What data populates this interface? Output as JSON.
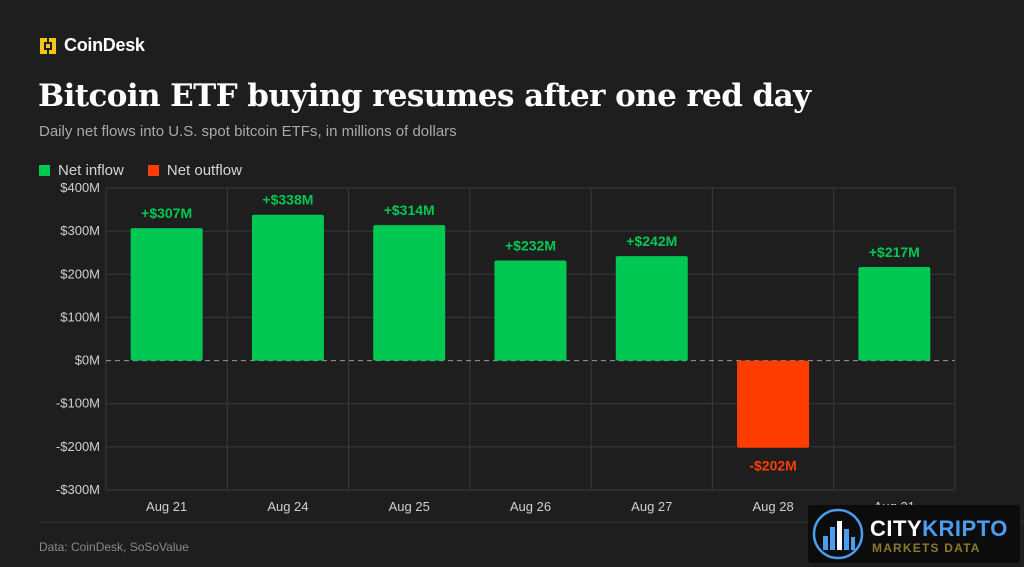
{
  "brand": {
    "name": "CoinDesk",
    "logo_icon": "coindesk-logo-icon"
  },
  "title": "Bitcoin ETF buying resumes after one red day",
  "subtitle": "Daily net flows into U.S. spot bitcoin ETFs, in millions of dollars",
  "source": "Data: CoinDesk, SoSoValue",
  "watermark": {
    "name_part1": "CITY",
    "name_part2": "KRIPTO",
    "tagline": "MARKETS DATA",
    "icon": "city-skyline-icon"
  },
  "colors": {
    "background": "#1e1e1e",
    "inflow": "#00c853",
    "outflow": "#ff3d00",
    "grid": "#3a3a3a",
    "axis_text": "#d0d0d0"
  },
  "chart_data": {
    "type": "bar",
    "categories": [
      "Aug 21",
      "Aug 24",
      "Aug 25",
      "Aug 26",
      "Aug 27",
      "Aug 28",
      "Aug 31"
    ],
    "values": [
      307,
      338,
      314,
      232,
      242,
      -202,
      217
    ],
    "data_labels": [
      "+$307M",
      "+$338M",
      "+$314M",
      "+$232M",
      "+$242M",
      "-$202M",
      "+$217M"
    ],
    "legend": [
      {
        "label": "Net inflow",
        "color": "#00c853"
      },
      {
        "label": "Net outflow",
        "color": "#ff3d00"
      }
    ],
    "y_ticks": [
      400,
      300,
      200,
      100,
      0,
      -100,
      -200,
      -300
    ],
    "y_tick_labels": [
      "$400M",
      "$300M",
      "$200M",
      "$100M",
      "$0M",
      "-$100M",
      "-$200M",
      "-$300M"
    ],
    "ylim": [
      -300,
      400
    ],
    "grid": true,
    "legend_position": "top-left",
    "xlabel": "",
    "ylabel": ""
  }
}
